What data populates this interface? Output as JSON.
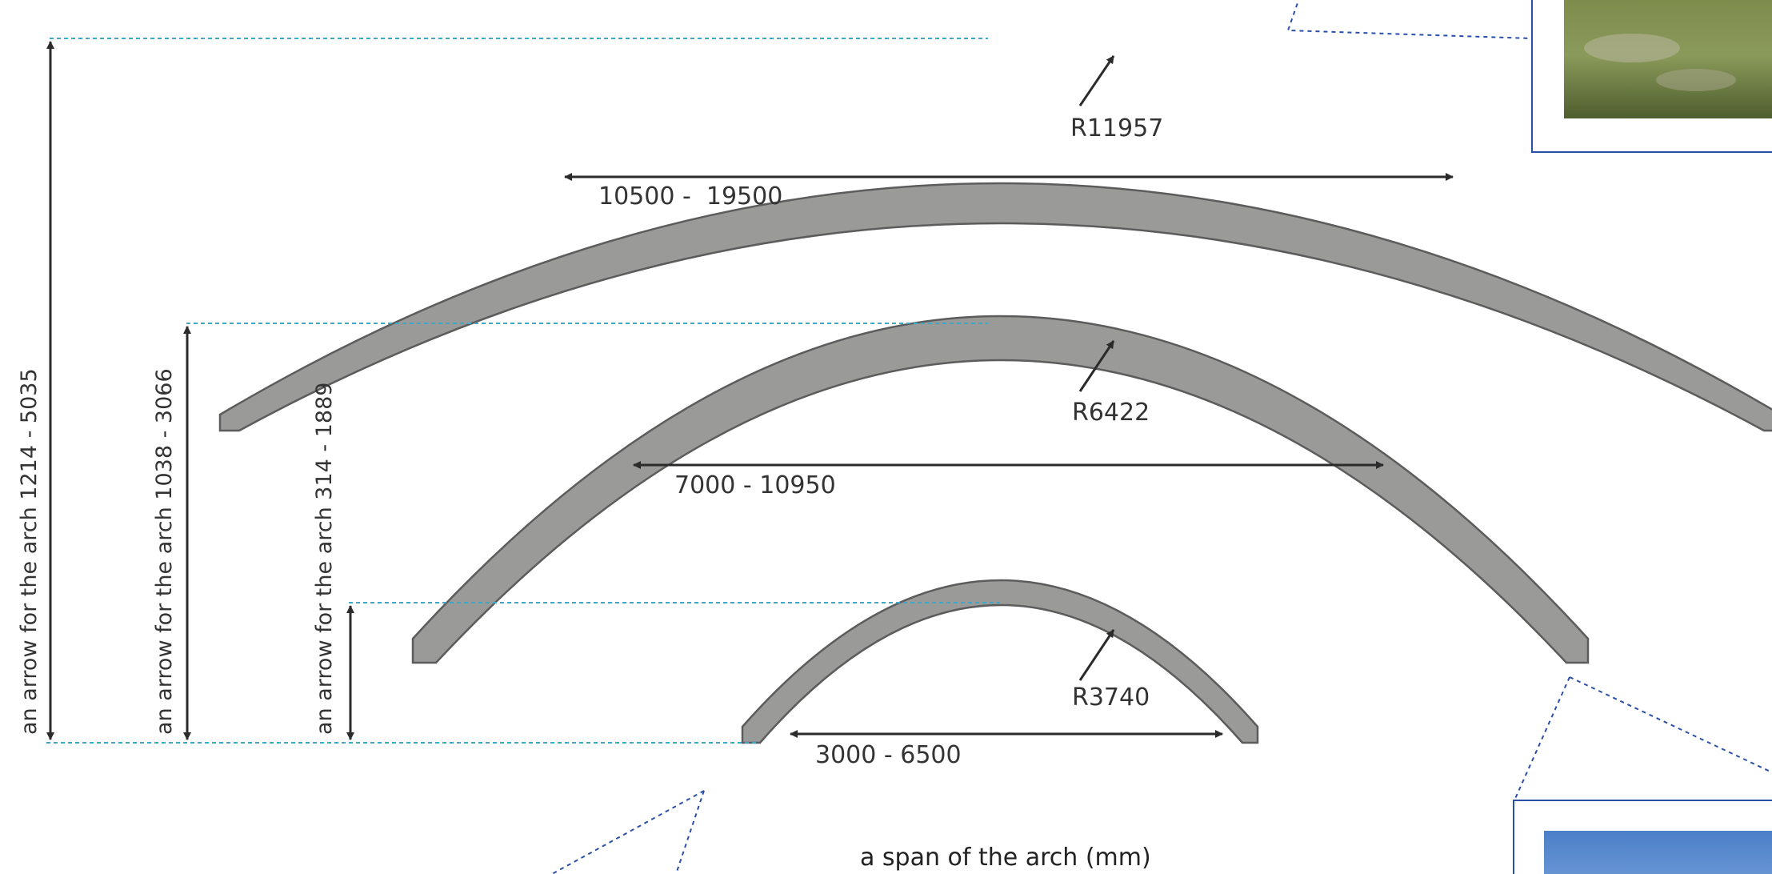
{
  "colors": {
    "arch_fill": "#9a9a99",
    "arch_stroke": "#5c5c5c",
    "arrow": "#2b2b2b",
    "guide_line": "#3fa6c4",
    "callout": "#2a4fa8",
    "photo_border": "#2a4fa8"
  },
  "arches": [
    {
      "radius_label": "R11957",
      "span_label": "10500 -  19500",
      "height_label": "an arrow for the arch 1214 - 5035"
    },
    {
      "radius_label": "R6422",
      "span_label": "7000 - 10950",
      "height_label": "an arrow for the arch 1038 - 3066"
    },
    {
      "radius_label": "R3740",
      "span_label": "3000 - 6500",
      "height_label": "an arrow for the arch 314 - 1889"
    }
  ],
  "caption": "a span of the arch (mm)",
  "photos": [
    {
      "name": "photo-top-right",
      "icon": "grass-photo-icon"
    },
    {
      "name": "photo-bottom-right",
      "icon": "sky-photo-icon"
    }
  ]
}
